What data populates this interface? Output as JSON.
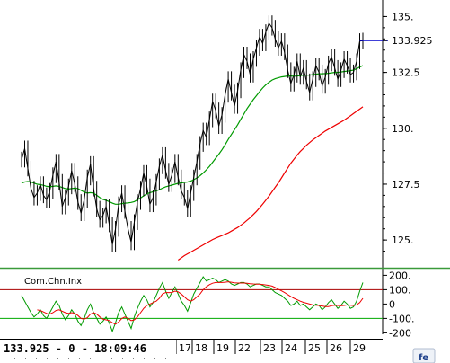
{
  "status": {
    "last_price": "133.925",
    "change": "0",
    "time": "18:09:46",
    "text": "133.925 - 0 - 18:09:46"
  },
  "chart_data": [
    {
      "type": "line",
      "name": "price-panel",
      "y_ticks": [
        "135.",
        "132.5",
        "130.",
        "127.5",
        "125."
      ],
      "y_tick_values": [
        135,
        132.5,
        130,
        127.5,
        125
      ],
      "ylim": [
        124.0,
        135.5
      ],
      "last_value_label": "133.925",
      "last_value": 133.925,
      "x_labels": [
        "17",
        "18",
        "19",
        "22",
        "23",
        "24",
        "25",
        "26",
        "29"
      ],
      "series": [
        {
          "color": "#000000",
          "values": [
            128.6,
            129.1,
            128.2,
            127.3,
            126.9,
            127.1,
            127.5,
            127.0,
            126.8,
            127.2,
            127.9,
            128.5,
            127.6,
            126.5,
            126.9,
            127.4,
            128.1,
            127.5,
            126.7,
            126.2,
            126.8,
            127.8,
            128.4,
            127.3,
            126.4,
            125.9,
            126.1,
            126.5,
            125.7,
            124.8,
            125.5,
            126.6,
            127.1,
            126.3,
            125.5,
            124.9,
            125.8,
            126.7,
            127.3,
            128.0,
            127.4,
            126.6,
            126.9,
            127.6,
            128.3,
            128.8,
            128.1,
            127.5,
            127.9,
            128.5,
            127.8,
            127.2,
            126.9,
            126.4,
            127.1,
            127.8,
            128.5,
            129.3,
            129.9,
            129.6,
            130.4,
            131.2,
            130.8,
            130.1,
            130.6,
            131.5,
            132.2,
            131.6,
            131.0,
            131.7,
            132.6,
            133.3,
            133.0,
            132.4,
            133.1,
            133.6,
            134.1,
            133.8,
            134.3,
            134.7,
            134.5,
            134.0,
            133.6,
            133.9,
            133.4,
            132.6,
            132.0,
            132.4,
            133.0,
            132.3,
            132.7,
            132.1,
            131.6,
            132.2,
            132.8,
            132.5,
            131.9,
            132.3,
            132.9,
            133.2,
            132.7,
            132.2,
            132.6,
            133.1,
            132.8,
            132.4,
            132.5,
            133.0,
            133.9,
            133.925
          ]
        },
        {
          "color": "#009a00",
          "values": [
            127.55,
            127.6,
            127.62,
            127.6,
            127.55,
            127.5,
            127.48,
            127.45,
            127.4,
            127.38,
            127.4,
            127.42,
            127.4,
            127.35,
            127.3,
            127.28,
            127.3,
            127.32,
            127.3,
            127.22,
            127.15,
            127.1,
            127.12,
            127.1,
            127.0,
            126.9,
            126.82,
            126.78,
            126.72,
            126.65,
            126.6,
            126.6,
            126.63,
            126.65,
            126.66,
            126.68,
            126.72,
            126.8,
            126.88,
            126.98,
            127.06,
            127.12,
            127.16,
            127.2,
            127.25,
            127.32,
            127.38,
            127.42,
            127.46,
            127.5,
            127.54,
            127.56,
            127.58,
            127.6,
            127.64,
            127.7,
            127.78,
            127.88,
            128.0,
            128.14,
            128.3,
            128.48,
            128.66,
            128.84,
            129.04,
            129.26,
            129.5,
            129.72,
            129.94,
            130.16,
            130.4,
            130.64,
            130.88,
            131.08,
            131.28,
            131.46,
            131.64,
            131.8,
            131.94,
            132.06,
            132.16,
            132.22,
            132.26,
            132.3,
            132.32,
            132.34,
            132.34,
            132.33,
            132.34,
            132.36,
            132.38,
            132.38,
            132.38,
            132.4,
            132.42,
            132.44,
            132.44,
            132.45,
            132.46,
            132.48,
            132.5,
            132.5,
            132.52,
            132.54,
            132.56,
            132.58,
            132.6,
            132.66,
            132.74,
            132.8
          ]
        },
        {
          "color": "#ee0000",
          "values": [
            null,
            null,
            null,
            null,
            null,
            null,
            null,
            null,
            null,
            null,
            null,
            null,
            null,
            null,
            null,
            null,
            null,
            null,
            null,
            null,
            null,
            null,
            null,
            null,
            null,
            null,
            null,
            null,
            null,
            null,
            null,
            null,
            null,
            null,
            null,
            null,
            null,
            null,
            null,
            null,
            null,
            null,
            null,
            null,
            null,
            null,
            null,
            null,
            null,
            null,
            124.1,
            124.2,
            124.3,
            124.38,
            124.46,
            124.54,
            124.62,
            124.7,
            124.78,
            124.86,
            124.94,
            125.02,
            125.08,
            125.14,
            125.2,
            125.26,
            125.32,
            125.4,
            125.48,
            125.56,
            125.66,
            125.76,
            125.88,
            126.0,
            126.14,
            126.28,
            126.44,
            126.6,
            126.78,
            126.96,
            127.16,
            127.36,
            127.56,
            127.78,
            128.0,
            128.22,
            128.44,
            128.62,
            128.8,
            128.96,
            129.1,
            129.24,
            129.36,
            129.48,
            129.58,
            129.68,
            129.78,
            129.88,
            129.96,
            130.04,
            130.12,
            130.2,
            130.28,
            130.36,
            130.46,
            130.56,
            130.66,
            130.76,
            130.86,
            130.96
          ]
        },
        {
          "color": "#0000cc",
          "values": [
            null,
            null,
            null,
            null,
            null,
            null,
            null,
            null,
            null,
            null,
            null,
            null,
            null,
            null,
            null,
            null,
            null,
            null,
            null,
            null,
            null,
            null,
            null,
            null,
            null,
            null,
            null,
            null,
            null,
            null,
            null,
            null,
            null,
            null,
            null,
            null,
            null,
            null,
            null,
            null,
            null,
            null,
            null,
            null,
            null,
            null,
            null,
            null,
            null,
            null,
            null,
            null,
            null,
            null,
            null,
            null,
            null,
            null,
            null,
            null,
            null,
            null,
            null,
            null,
            null,
            null,
            null,
            null,
            null,
            null,
            null,
            null,
            null,
            null,
            null,
            null,
            null,
            null,
            null,
            null,
            null,
            null,
            null,
            null,
            null,
            null,
            null,
            null,
            null,
            null,
            null,
            null,
            null,
            null,
            null,
            null,
            null,
            null,
            null,
            null,
            null,
            null,
            null,
            null,
            null,
            null,
            null,
            null,
            133.925,
            133.925
          ]
        }
      ]
    },
    {
      "type": "line",
      "name": "indicator-panel",
      "label": "Com.Chn.Inx",
      "y_ticks": [
        "200.",
        "100.",
        "0",
        "-100.",
        "-200"
      ],
      "y_tick_values": [
        200,
        100,
        0,
        -100,
        -200
      ],
      "ylim": [
        -210,
        215
      ],
      "reference_lines": [
        {
          "value": 100,
          "color": "#aa0000"
        },
        {
          "value": -100,
          "color": "#00aa00"
        }
      ],
      "series": [
        {
          "color": "#009a00",
          "values": [
            60,
            20,
            -20,
            -60,
            -90,
            -70,
            -40,
            -80,
            -100,
            -60,
            -20,
            20,
            -10,
            -70,
            -110,
            -80,
            -40,
            -70,
            -120,
            -150,
            -100,
            -40,
            0,
            -60,
            -100,
            -140,
            -120,
            -90,
            -130,
            -190,
            -130,
            -60,
            -20,
            -70,
            -120,
            -170,
            -90,
            -30,
            20,
            60,
            30,
            -20,
            10,
            60,
            110,
            150,
            90,
            40,
            80,
            120,
            70,
            20,
            -10,
            -50,
            10,
            70,
            110,
            150,
            190,
            160,
            170,
            180,
            170,
            150,
            160,
            170,
            160,
            140,
            130,
            140,
            150,
            150,
            140,
            120,
            130,
            140,
            140,
            130,
            120,
            120,
            100,
            80,
            70,
            60,
            40,
            20,
            -10,
            0,
            20,
            -10,
            0,
            -20,
            -40,
            -20,
            0,
            -10,
            -40,
            -20,
            10,
            30,
            0,
            -30,
            -10,
            20,
            0,
            -30,
            -20,
            20,
            90,
            150
          ]
        },
        {
          "color": "#ee0000",
          "values": [
            null,
            null,
            null,
            null,
            null,
            -40,
            -45,
            -55,
            -65,
            -70,
            -60,
            -45,
            -40,
            -50,
            -60,
            -65,
            -60,
            -65,
            -80,
            -100,
            -105,
            -95,
            -70,
            -60,
            -70,
            -90,
            -105,
            -110,
            -115,
            -130,
            -140,
            -125,
            -100,
            -90,
            -100,
            -115,
            -110,
            -90,
            -60,
            -30,
            -10,
            0,
            10,
            20,
            40,
            70,
            80,
            80,
            80,
            90,
            85,
            70,
            50,
            30,
            20,
            30,
            50,
            70,
            100,
            120,
            135,
            145,
            150,
            150,
            150,
            152,
            155,
            152,
            148,
            146,
            146,
            146,
            145,
            142,
            140,
            139,
            138,
            136,
            133,
            130,
            125,
            115,
            103,
            92,
            80,
            66,
            52,
            40,
            30,
            20,
            12,
            6,
            0,
            -6,
            -8,
            -10,
            -14,
            -18,
            -18,
            -12,
            -8,
            -10,
            -12,
            -10,
            -6,
            -8,
            -10,
            -6,
            10,
            40
          ]
        }
      ]
    }
  ]
}
